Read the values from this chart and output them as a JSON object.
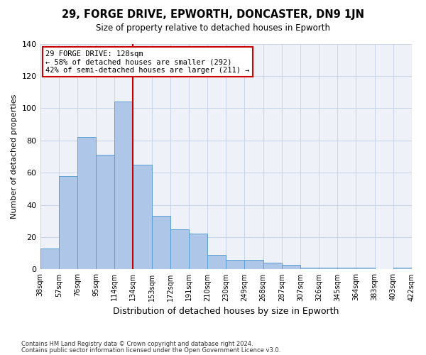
{
  "title": "29, FORGE DRIVE, EPWORTH, DONCASTER, DN9 1JN",
  "subtitle": "Size of property relative to detached houses in Epworth",
  "xlabel": "Distribution of detached houses by size in Epworth",
  "ylabel": "Number of detached properties",
  "categories": [
    "38sqm",
    "57sqm",
    "76sqm",
    "95sqm",
    "114sqm",
    "134sqm",
    "153sqm",
    "172sqm",
    "191sqm",
    "210sqm",
    "230sqm",
    "249sqm",
    "268sqm",
    "287sqm",
    "307sqm",
    "326sqm",
    "345sqm",
    "364sqm",
    "383sqm",
    "403sqm",
    "422sqm"
  ],
  "bar_values": [
    13,
    58,
    82,
    71,
    104,
    65,
    33,
    25,
    22,
    9,
    6,
    6,
    4,
    3,
    1,
    1,
    1,
    1,
    0,
    1
  ],
  "bar_color": "#aec6e8",
  "bar_edge_color": "#5a9fd4",
  "vline_x": 5,
  "vline_color": "#cc0000",
  "annotation_text": "29 FORGE DRIVE: 128sqm\n← 58% of detached houses are smaller (292)\n42% of semi-detached houses are larger (211) →",
  "annotation_box_color": "#ffffff",
  "annotation_border_color": "#cc0000",
  "ylim": [
    0,
    140
  ],
  "yticks": [
    0,
    20,
    40,
    60,
    80,
    100,
    120,
    140
  ],
  "bg_color": "#eef2f8",
  "footer_line1": "Contains HM Land Registry data © Crown copyright and database right 2024.",
  "footer_line2": "Contains public sector information licensed under the Open Government Licence v3.0."
}
